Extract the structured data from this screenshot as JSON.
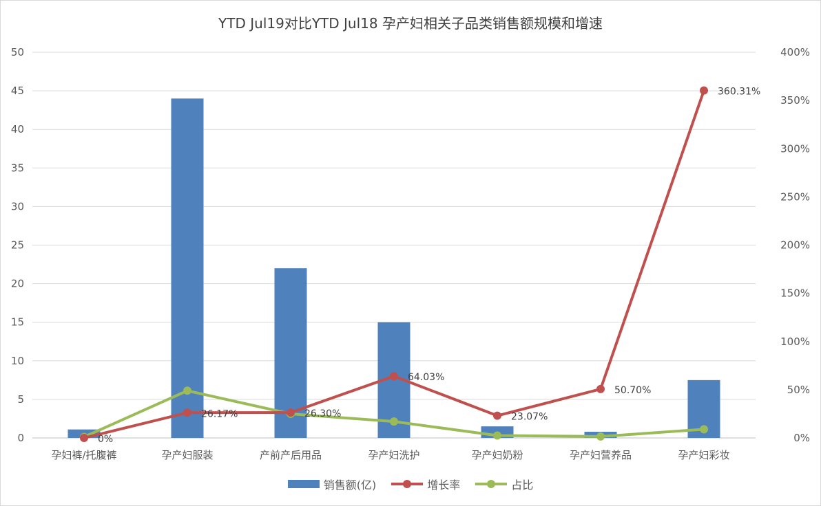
{
  "chart_data": {
    "type": "bar",
    "title": "YTD Jul19对比YTD Jul18 孕产妇相关子品类销售额规模和增速",
    "categories": [
      "孕妇裤/托腹裤",
      "孕产妇服装",
      "产前产后用品",
      "孕产妇洗护",
      "孕产妇奶粉",
      "孕产妇营养品",
      "孕产妇彩妆"
    ],
    "ylim": [
      0,
      50
    ],
    "y_ticks": [
      "0",
      "5",
      "10",
      "15",
      "20",
      "25",
      "30",
      "35",
      "40",
      "45",
      "50"
    ],
    "y2lim": [
      0,
      4
    ],
    "y2_ticks": [
      "0%",
      "50%",
      "100%",
      "150%",
      "200%",
      "250%",
      "300%",
      "350%",
      "400%"
    ],
    "grid": true,
    "legend_position": "bottom",
    "series": [
      {
        "name": "销售额(亿)",
        "type": "bar",
        "axis": "left",
        "color": "#4F81BD",
        "values": [
          1.1,
          44,
          22,
          15,
          1.5,
          0.8,
          7.5
        ]
      },
      {
        "name": "增长率",
        "type": "line",
        "axis": "right",
        "color": "#C0504D",
        "values": [
          0,
          0.2617,
          0.263,
          0.6403,
          0.2307,
          0.507,
          3.6031
        ],
        "labels": [
          "0%",
          "26.17%",
          "26.30%",
          "64.03%",
          "23.07%",
          "50.70%",
          "360.31%"
        ]
      },
      {
        "name": "占比",
        "type": "line",
        "axis": "right",
        "color": "#9BBB59",
        "values": [
          0.01,
          0.49,
          0.25,
          0.17,
          0.025,
          0.015,
          0.09
        ]
      }
    ]
  }
}
